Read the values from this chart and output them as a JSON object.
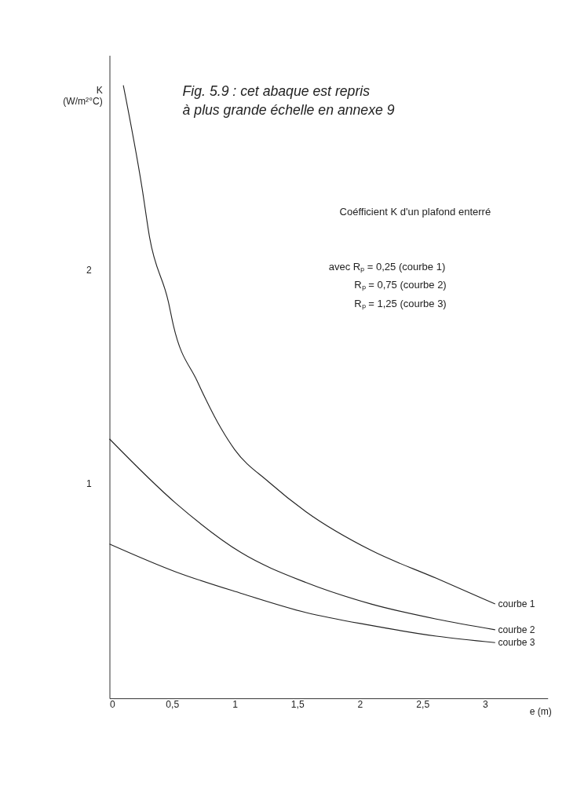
{
  "chart_data": {
    "type": "line",
    "title": "Fig. 5.9 : cet abaque est repris à plus grande échelle en annexe 9",
    "xlabel": "e (m)",
    "ylabel": "K (W/m²°C)",
    "annotations": [
      "Coéfficient K d'un plafond enterré",
      "avec Rₚ = 0,25 (courbe 1)",
      "Rₚ = 0,75 (courbe 2)",
      "Rₚ = 1,25 (courbe 3)"
    ],
    "xlim": [
      0,
      3.5
    ],
    "ylim": [
      0,
      3.0
    ],
    "xticks": [
      0,
      {
        "value": 0.5,
        "label": "0,5"
      },
      1,
      {
        "value": 1.5,
        "label": "1,5"
      },
      2,
      {
        "value": 2.5,
        "label": "2,5"
      },
      3
    ],
    "yticks": [
      1,
      2
    ],
    "grid": false,
    "legend": false,
    "marker": "none",
    "line_style": "solid",
    "series": [
      {
        "name": "courbe 1",
        "color": "#222222",
        "x": [
          0.11,
          0.26,
          0.32,
          0.47,
          0.51,
          0.7,
          0.89,
          1.0,
          1.27,
          1.57,
          2.09,
          2.61,
          3.08
        ],
        "values": [
          2.86,
          2.38,
          2.15,
          1.85,
          1.74,
          1.48,
          1.26,
          1.16,
          1.01,
          0.87,
          0.69,
          0.56,
          0.44
        ]
      },
      {
        "name": "courbe 2",
        "color": "#222222",
        "x": [
          0,
          0.53,
          1.05,
          1.57,
          2.09,
          2.61,
          3.08
        ],
        "values": [
          1.21,
          0.91,
          0.68,
          0.54,
          0.44,
          0.37,
          0.32
        ]
      },
      {
        "name": "courbe 3",
        "color": "#222222",
        "x": [
          0,
          0.53,
          1.05,
          1.57,
          2.09,
          2.61,
          3.08
        ],
        "values": [
          0.72,
          0.59,
          0.49,
          0.4,
          0.34,
          0.29,
          0.26
        ]
      }
    ]
  }
}
